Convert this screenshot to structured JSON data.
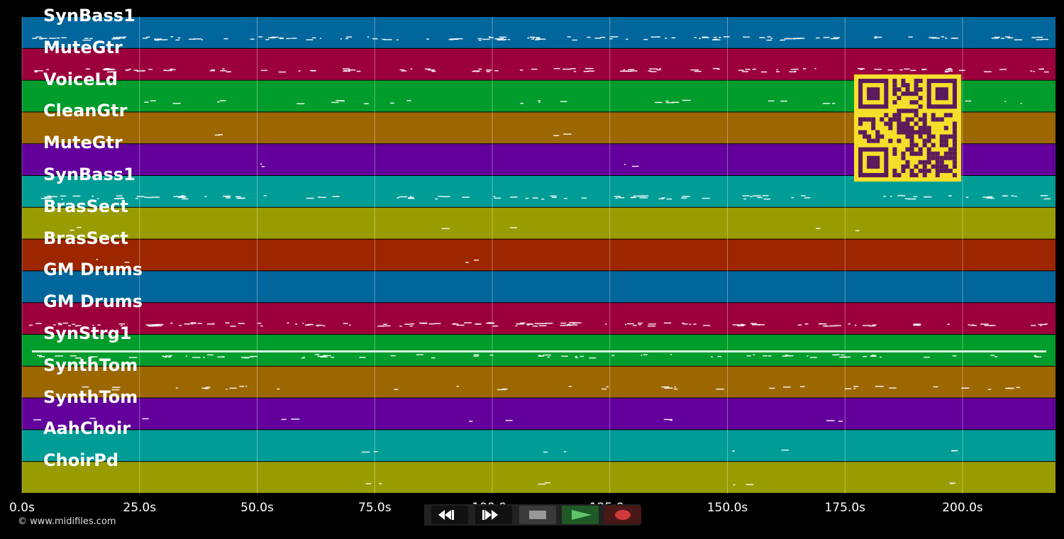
{
  "tracks": [
    {
      "name": "SynBass1",
      "color": "#00669c"
    },
    {
      "name": "MuteGtr",
      "color": "#9c003c"
    },
    {
      "name": "VoiceLd",
      "color": "#009c2c"
    },
    {
      "name": "CleanGtr",
      "color": "#9c6600"
    },
    {
      "name": "MuteGtr",
      "color": "#63009c"
    },
    {
      "name": "SynBass1",
      "color": "#009c96"
    },
    {
      "name": "BrasSect",
      "color": "#999c00"
    },
    {
      "name": "BrasSect",
      "color": "#9c2600"
    },
    {
      "name": "GM Drums",
      "color": "#00669c"
    },
    {
      "name": "GM Drums",
      "color": "#9c003c"
    },
    {
      "name": "SynStrg1",
      "color": "#009c2c"
    },
    {
      "name": "SynthTom",
      "color": "#9c6600"
    },
    {
      "name": "SynthTom",
      "color": "#63009c"
    },
    {
      "name": "AahChoir",
      "color": "#009c96"
    },
    {
      "name": "ChoirPd",
      "color": "#999c00"
    }
  ],
  "timeline": {
    "ticks": [
      "0.0s",
      "25.0s",
      "50.0s",
      "75.0s",
      "100.0s",
      "125.0s",
      "150.0s",
      "175.0s",
      "200.0s"
    ]
  },
  "transport": {
    "buttons": [
      {
        "name": "rewind",
        "icon": "rewind-icon"
      },
      {
        "name": "fast-forward",
        "icon": "fast-forward-icon"
      },
      {
        "name": "stop",
        "icon": "stop-icon"
      },
      {
        "name": "play",
        "icon": "play-icon"
      },
      {
        "name": "record",
        "icon": "record-icon"
      }
    ]
  },
  "copyright": "© www.midifiles.com"
}
